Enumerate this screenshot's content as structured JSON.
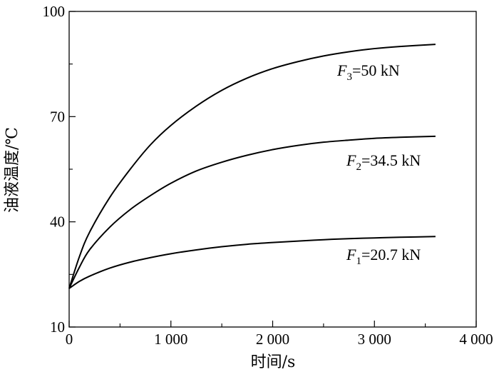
{
  "chart_data": {
    "type": "line",
    "xlabel": "时间/s",
    "ylabel": "油液温度/℃",
    "xlim": [
      0,
      4000
    ],
    "ylim": [
      10,
      100
    ],
    "x_ticks": [
      {
        "value": 0,
        "label": "0"
      },
      {
        "value": 1000,
        "label": "1 000"
      },
      {
        "value": 2000,
        "label": "2 000"
      },
      {
        "value": 3000,
        "label": "3 000"
      },
      {
        "value": 4000,
        "label": "4 000"
      }
    ],
    "y_ticks": [
      {
        "value": 10,
        "label": "10"
      },
      {
        "value": 40,
        "label": "40"
      },
      {
        "value": 70,
        "label": "70"
      },
      {
        "value": 100,
        "label": "100"
      }
    ],
    "grid": false,
    "legend": "none",
    "series": [
      {
        "name": "F3=50 kN",
        "label": {
          "symbol": "F",
          "sub": "3",
          "rest": "=50 kN"
        },
        "x": [
          0,
          100,
          200,
          400,
          600,
          800,
          1000,
          1250,
          1500,
          1750,
          2000,
          2250,
          2500,
          2750,
          3000,
          3250,
          3600
        ],
        "values": [
          21,
          30,
          37,
          47,
          55,
          62,
          67.5,
          73,
          77.5,
          81,
          83.7,
          85.7,
          87.3,
          88.5,
          89.4,
          90,
          90.6
        ]
      },
      {
        "name": "F2=34.5 kN",
        "label": {
          "symbol": "F",
          "sub": "2",
          "rest": "=34.5 kN"
        },
        "x": [
          0,
          100,
          200,
          400,
          600,
          800,
          1000,
          1250,
          1500,
          1750,
          2000,
          2250,
          2500,
          2750,
          3000,
          3250,
          3600
        ],
        "values": [
          21,
          27,
          32,
          38.5,
          43.5,
          47.5,
          51,
          54.5,
          57,
          59,
          60.6,
          61.8,
          62.7,
          63.3,
          63.8,
          64.1,
          64.4
        ]
      },
      {
        "name": "F1=20.7 kN",
        "label": {
          "symbol": "F",
          "sub": "1",
          "rest": "=20.7 kN"
        },
        "x": [
          0,
          100,
          200,
          400,
          600,
          800,
          1000,
          1250,
          1500,
          1750,
          2000,
          2250,
          2500,
          2750,
          3000,
          3250,
          3600
        ],
        "values": [
          21,
          23,
          24.5,
          26.8,
          28.5,
          29.8,
          30.9,
          32,
          32.9,
          33.6,
          34.1,
          34.5,
          34.9,
          35.2,
          35.4,
          35.6,
          35.8
        ]
      }
    ]
  }
}
